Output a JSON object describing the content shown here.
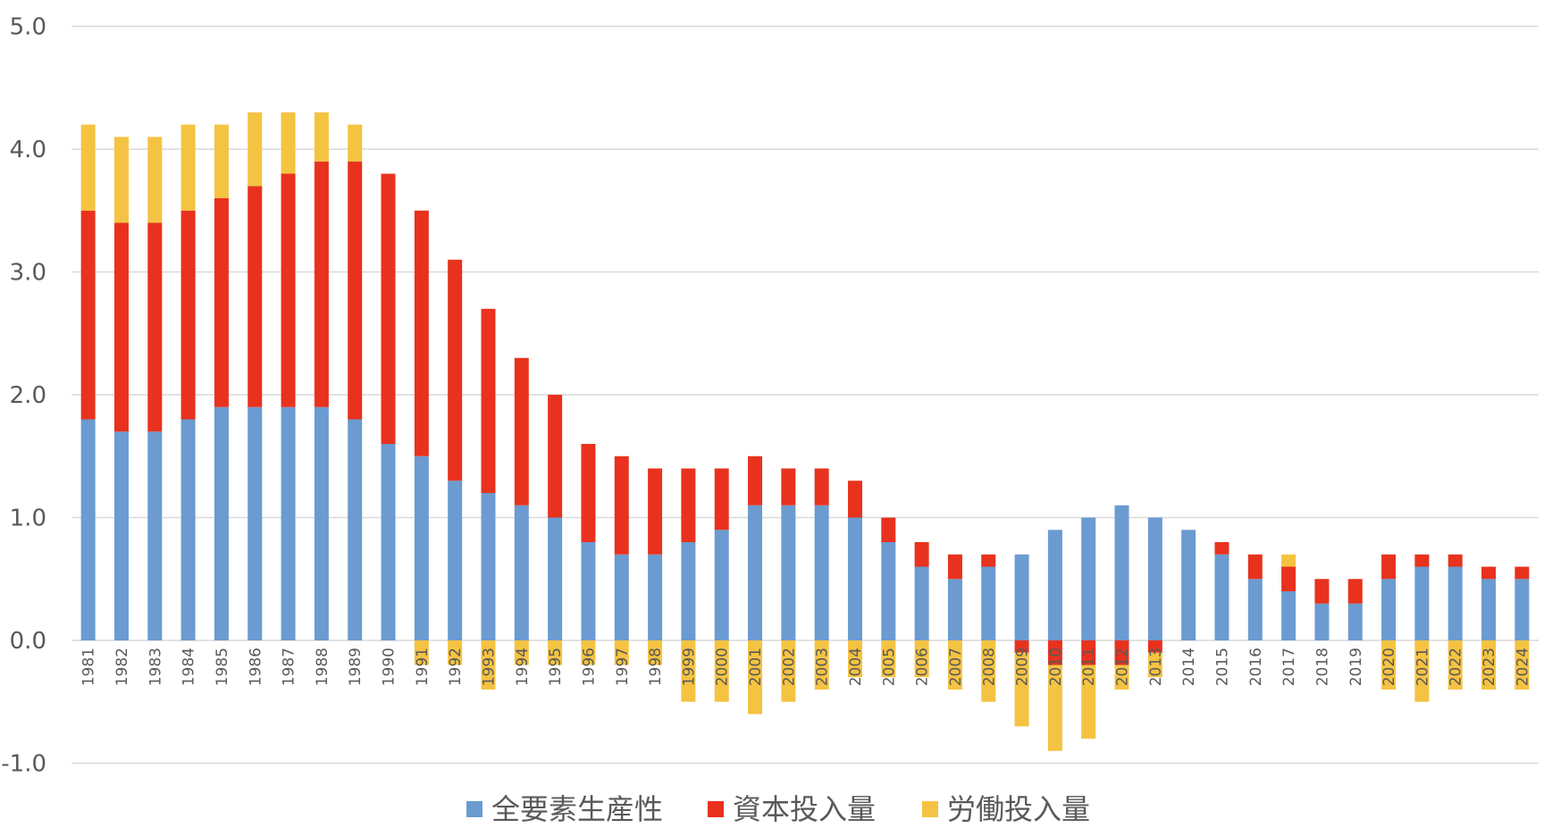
{
  "chart_data": {
    "type": "bar",
    "stacked": true,
    "categories": [
      "1981",
      "1982",
      "1983",
      "1984",
      "1985",
      "1986",
      "1987",
      "1988",
      "1989",
      "1990",
      "1991",
      "1992",
      "1993",
      "1994",
      "1995",
      "1996",
      "1997",
      "1998",
      "1999",
      "2000",
      "2001",
      "2002",
      "2003",
      "2004",
      "2005",
      "2006",
      "2007",
      "2008",
      "2009",
      "2010",
      "2011",
      "2012",
      "2013",
      "2014",
      "2015",
      "2016",
      "2017",
      "2018",
      "2019",
      "2020",
      "2021",
      "2022",
      "2023",
      "2024"
    ],
    "series": [
      {
        "name": "全要素生産性",
        "color": "#6b9bd1",
        "values": [
          1.8,
          1.7,
          1.7,
          1.8,
          1.9,
          1.9,
          1.9,
          1.9,
          1.8,
          1.6,
          1.5,
          1.3,
          1.2,
          1.1,
          1.0,
          0.8,
          0.7,
          0.7,
          0.8,
          0.9,
          1.1,
          1.1,
          1.1,
          1.0,
          0.8,
          0.6,
          0.5,
          0.6,
          0.7,
          0.9,
          1.0,
          1.1,
          1.0,
          0.9,
          0.7,
          0.5,
          0.4,
          0.3,
          0.3,
          0.5,
          0.6,
          0.6,
          0.5,
          0.5
        ]
      },
      {
        "name": "資本投入量",
        "color": "#e8321e",
        "values": [
          1.7,
          1.7,
          1.7,
          1.7,
          1.7,
          1.8,
          1.9,
          2.0,
          2.1,
          2.2,
          2.0,
          1.8,
          1.5,
          1.2,
          1.0,
          0.8,
          0.8,
          0.7,
          0.6,
          0.5,
          0.4,
          0.3,
          0.3,
          0.3,
          0.2,
          0.2,
          0.2,
          0.1,
          -0.1,
          -0.2,
          -0.2,
          -0.2,
          -0.1,
          0.0,
          0.1,
          0.2,
          0.2,
          0.2,
          0.2,
          0.2,
          0.1,
          0.1,
          0.1,
          0.1
        ]
      },
      {
        "name": "労働投入量",
        "color": "#f5c342",
        "values": [
          0.7,
          0.7,
          0.7,
          0.7,
          0.6,
          0.6,
          0.5,
          0.4,
          0.3,
          0.0,
          -0.2,
          -0.2,
          -0.4,
          -0.2,
          -0.2,
          -0.2,
          -0.2,
          -0.2,
          -0.5,
          -0.5,
          -0.6,
          -0.5,
          -0.4,
          -0.3,
          -0.3,
          -0.3,
          -0.4,
          -0.5,
          -0.6,
          -0.7,
          -0.6,
          -0.2,
          -0.2,
          0.0,
          0.0,
          0.0,
          0.1,
          0.0,
          0.0,
          -0.4,
          -0.5,
          -0.4,
          -0.4,
          -0.4
        ]
      }
    ],
    "ylim": [
      -1.0,
      5.0
    ],
    "yticks": [
      "-1.0",
      "0.0",
      "1.0",
      "2.0",
      "3.0",
      "4.0",
      "5.0"
    ],
    "grid": true,
    "legend_position": "bottom-center",
    "title": "",
    "xlabel": "",
    "ylabel": ""
  }
}
